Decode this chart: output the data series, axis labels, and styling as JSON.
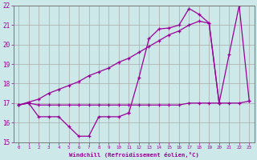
{
  "xlabel": "Windchill (Refroidissement éolien,°C)",
  "x_values": [
    0,
    1,
    2,
    3,
    4,
    5,
    6,
    7,
    8,
    9,
    10,
    11,
    12,
    13,
    14,
    15,
    16,
    17,
    18,
    19,
    20,
    21,
    22,
    23
  ],
  "line_zigzag": [
    16.9,
    17.0,
    16.3,
    16.3,
    16.3,
    15.8,
    15.3,
    15.3,
    16.3,
    16.3,
    16.3,
    16.5,
    null,
    null,
    null,
    null,
    null,
    null,
    null,
    null,
    null,
    null,
    null,
    null
  ],
  "line_flat": [
    16.9,
    17.0,
    16.9,
    16.9,
    16.9,
    16.9,
    16.9,
    16.9,
    16.9,
    16.9,
    16.9,
    16.9,
    16.9,
    16.9,
    16.9,
    16.9,
    16.9,
    17.0,
    17.0,
    17.0,
    17.0,
    17.0,
    17.0,
    17.1
  ],
  "line_diagonal": [
    16.9,
    17.05,
    17.2,
    17.5,
    17.7,
    17.9,
    18.1,
    18.4,
    18.6,
    18.8,
    19.1,
    19.3,
    19.6,
    19.9,
    20.2,
    20.5,
    20.7,
    21.0,
    21.2,
    21.1,
    17.0,
    null,
    null,
    null
  ],
  "line_peak": [
    null,
    null,
    null,
    null,
    null,
    null,
    null,
    null,
    null,
    null,
    null,
    16.5,
    18.3,
    20.3,
    20.8,
    20.85,
    21.0,
    21.85,
    21.55,
    21.1,
    17.0,
    19.5,
    22.0,
    17.1
  ],
  "ylim": [
    15,
    22
  ],
  "xlim_min": -0.5,
  "xlim_max": 23.5,
  "line_color": "#990099",
  "bg_color": "#cce8e8",
  "grid_color": "#aaaaaa",
  "tick_color": "#990099",
  "label_color": "#990099"
}
